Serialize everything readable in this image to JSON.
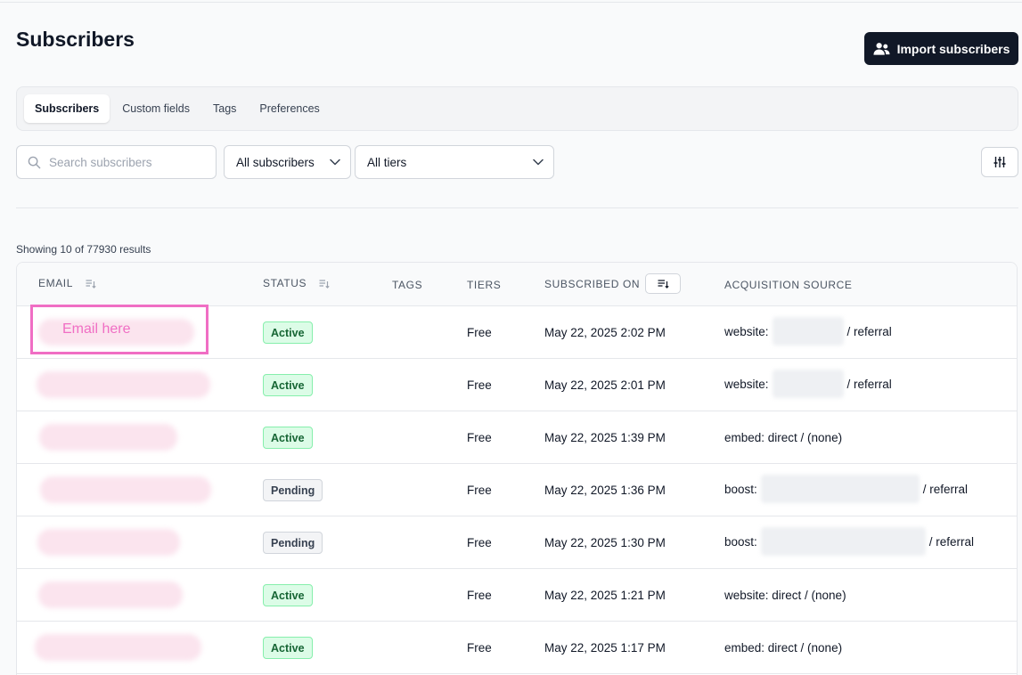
{
  "page": {
    "title": "Subscribers",
    "import_button": "Import subscribers",
    "icons": {
      "import": "users-icon",
      "search": "search-icon",
      "chevron": "chevron-down-icon",
      "filter": "sliders-icon",
      "sort": "sort-icon"
    }
  },
  "tabs": [
    {
      "label": "Subscribers",
      "active": true
    },
    {
      "label": "Custom fields",
      "active": false
    },
    {
      "label": "Tags",
      "active": false
    },
    {
      "label": "Preferences",
      "active": false
    }
  ],
  "filters": {
    "search_placeholder": "Search subscribers",
    "subscriber_filter": "All subscribers",
    "tier_filter": "All tiers"
  },
  "results_text": "Showing 10 of 77930 results",
  "table": {
    "headers": {
      "email": "EMAIL",
      "status": "STATUS",
      "tags": "TAGS",
      "tiers": "TIERS",
      "subscribed_on": "SUBSCRIBED ON",
      "acquisition_source": "ACQUISITION SOURCE"
    },
    "annotation": "Email here",
    "rows": [
      {
        "status": "Active",
        "tier": "Free",
        "date": "May 22, 2025 2:02 PM",
        "source_prefix": "website:",
        "source_suffix": "/ referral"
      },
      {
        "status": "Active",
        "tier": "Free",
        "date": "May 22, 2025 2:01 PM",
        "source_prefix": "website:",
        "source_suffix": "/ referral"
      },
      {
        "status": "Active",
        "tier": "Free",
        "date": "May 22, 2025 1:39 PM",
        "source_prefix": "embed: direct / (none)",
        "source_suffix": ""
      },
      {
        "status": "Pending",
        "tier": "Free",
        "date": "May 22, 2025 1:36 PM",
        "source_prefix": "boost:",
        "source_suffix": "/ referral"
      },
      {
        "status": "Pending",
        "tier": "Free",
        "date": "May 22, 2025 1:30 PM",
        "source_prefix": "boost:",
        "source_suffix": "/ referral"
      },
      {
        "status": "Active",
        "tier": "Free",
        "date": "May 22, 2025 1:21 PM",
        "source_prefix": "website: direct / (none)",
        "source_suffix": ""
      },
      {
        "status": "Active",
        "tier": "Free",
        "date": "May 22, 2025 1:17 PM",
        "source_prefix": "embed: direct / (none)",
        "source_suffix": ""
      }
    ]
  },
  "colors": {
    "primary_button": "#111827",
    "active_badge_bg": "#dcfce7",
    "active_badge_text": "#166534",
    "pending_badge_bg": "#f3f4f6",
    "annotation": "#f06ec4"
  }
}
